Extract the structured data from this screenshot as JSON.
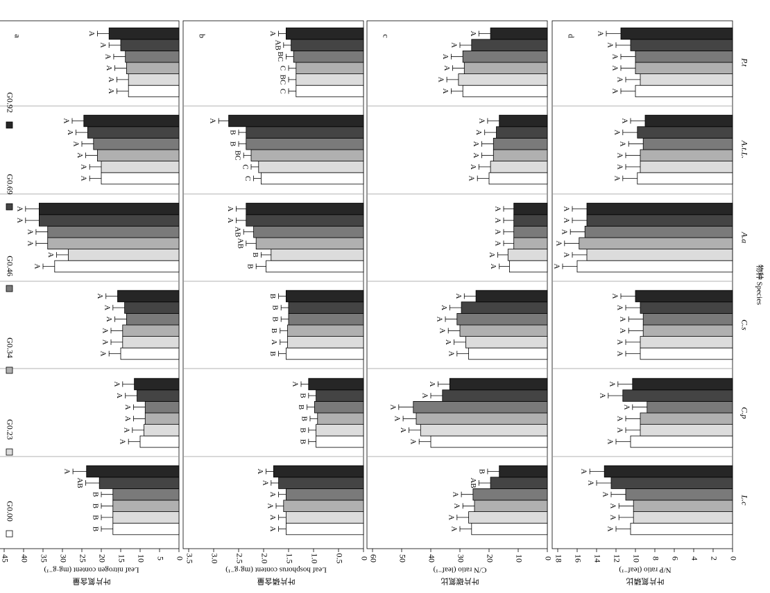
{
  "chart_data": {
    "type": "bar",
    "orientation": "horizontal",
    "categories": [
      "L.c",
      "C.p",
      "C.s",
      "A.a",
      "A.t.L.",
      "P.t"
    ],
    "xlabel": "物种 Species",
    "legend": {
      "placement": "top-left",
      "entries": [
        "G0.00",
        "G0.23",
        "G0.34",
        "G0.46",
        "G0.69",
        "G0.92"
      ],
      "colors": [
        "#ffffff",
        "#dcdcdc",
        "#b0b0b0",
        "#7a7a7a",
        "#444444",
        "#262626"
      ]
    },
    "panels": [
      {
        "label": "a",
        "ylabel_cn": "叶片氮含量",
        "ylabel": "Leaf nitrogen content (mg·g⁻¹)",
        "ylim": [
          0,
          45
        ],
        "ticks": [
          45,
          40,
          35,
          30,
          25,
          20,
          15,
          10,
          5,
          0
        ],
        "series": [
          {
            "name": "G0.00",
            "values": [
              17.0,
              10.0,
              15.0,
              32.0,
              20.0,
              13.0
            ],
            "errors": [
              3.0,
              3.0,
              3.0,
              3.0,
              3.0,
              3.0
            ],
            "sig": [
              "B",
              "A",
              "A",
              "A",
              "A",
              "A"
            ]
          },
          {
            "name": "G0.23",
            "values": [
              17.0,
              9.0,
              14.5,
              28.5,
              20.0,
              13.0
            ],
            "errors": [
              3.0,
              3.0,
              3.0,
              3.0,
              3.0,
              3.0
            ],
            "sig": [
              "B",
              "A",
              "A",
              "A",
              "A",
              "A"
            ]
          },
          {
            "name": "G0.34",
            "values": [
              17.0,
              8.7,
              14.5,
              33.8,
              21.0,
              13.5
            ],
            "errors": [
              3.0,
              3.0,
              3.0,
              3.0,
              3.0,
              3.0
            ],
            "sig": [
              "B",
              "A",
              "A",
              "A",
              "A",
              "A"
            ]
          },
          {
            "name": "G0.46",
            "values": [
              17.0,
              8.7,
              13.5,
              33.8,
              22.0,
              13.8
            ],
            "errors": [
              3.0,
              3.0,
              3.0,
              3.0,
              3.0,
              3.0
            ],
            "sig": [
              "B",
              "A",
              "A",
              "A",
              "A",
              "A"
            ]
          },
          {
            "name": "G0.69",
            "values": [
              20.5,
              10.8,
              14.0,
              36.0,
              23.5,
              15.0
            ],
            "errors": [
              3.5,
              3.0,
              3.0,
              3.5,
              3.0,
              3.0
            ],
            "sig": [
              "AB",
              "A",
              "A",
              "A",
              "A",
              "A"
            ]
          },
          {
            "name": "G0.92",
            "values": [
              23.8,
              11.5,
              15.8,
              36.0,
              24.5,
              18.0
            ],
            "errors": [
              3.5,
              3.0,
              3.0,
              3.5,
              3.0,
              3.0
            ],
            "sig": [
              "A",
              "A",
              "A",
              "A",
              "A",
              "A"
            ]
          }
        ]
      },
      {
        "label": "b",
        "ylabel_cn": "叶片磷含量",
        "ylabel": "Leaf hosphorus content (mg·g⁻¹)",
        "ylim": [
          0,
          3.5
        ],
        "ticks": [
          "3.5",
          "3.0",
          "2.5",
          "2.0",
          "1.5",
          "1.0",
          "0.5",
          "0"
        ],
        "series": [
          {
            "name": "G0.00",
            "values": [
              1.55,
              0.95,
              1.55,
              1.95,
              2.05,
              1.35
            ],
            "errors": [
              0.15,
              0.15,
              0.15,
              0.2,
              0.15,
              0.15
            ],
            "sig": [
              "A",
              "B",
              "B",
              "B",
              "C",
              "C"
            ]
          },
          {
            "name": "G0.23",
            "values": [
              1.55,
              0.95,
              1.52,
              1.85,
              2.1,
              1.35
            ],
            "errors": [
              0.15,
              0.15,
              0.15,
              0.2,
              0.15,
              0.15
            ],
            "sig": [
              "A",
              "B",
              "A",
              "B",
              "C",
              "BC"
            ]
          },
          {
            "name": "G0.34",
            "values": [
              1.6,
              0.92,
              1.52,
              2.15,
              2.25,
              1.35
            ],
            "errors": [
              0.15,
              0.15,
              0.15,
              0.2,
              0.15,
              0.15
            ],
            "sig": [
              "A",
              "B",
              "B",
              "AB",
              "BC",
              "C"
            ]
          },
          {
            "name": "G0.46",
            "values": [
              1.55,
              0.98,
              1.5,
              2.2,
              2.35,
              1.4
            ],
            "errors": [
              0.15,
              0.15,
              0.15,
              0.2,
              0.15,
              0.15
            ],
            "sig": [
              "A",
              "B",
              "B",
              "AB",
              "B",
              "BC"
            ]
          },
          {
            "name": "G0.69",
            "values": [
              1.7,
              0.95,
              1.5,
              2.35,
              2.35,
              1.45
            ],
            "errors": [
              0.15,
              0.15,
              0.15,
              0.2,
              0.15,
              0.15
            ],
            "sig": [
              "A",
              "B",
              "B",
              "A",
              "B",
              "AB"
            ]
          },
          {
            "name": "G0.92",
            "values": [
              1.8,
              1.1,
              1.55,
              2.35,
              2.7,
              1.55
            ],
            "errors": [
              0.15,
              0.15,
              0.15,
              0.2,
              0.2,
              0.15
            ],
            "sig": [
              "A",
              "A",
              "B",
              "A",
              "A",
              "A"
            ]
          }
        ]
      },
      {
        "label": "c",
        "ylabel_cn": "叶片碳氮比",
        "ylabel": "C/N ratio (leaf⁻¹)",
        "ylim": [
          0,
          60
        ],
        "ticks": [
          60,
          50,
          40,
          30,
          20,
          10,
          0
        ],
        "series": [
          {
            "name": "G0.00",
            "values": [
              26.0,
              40.0,
              27.0,
              13.0,
              20.0,
              29.0
            ],
            "errors": [
              4.0,
              4.0,
              4.0,
              3.5,
              4.0,
              4.0
            ],
            "sig": [
              "A",
              "A",
              "A",
              "A",
              "A",
              "A"
            ]
          },
          {
            "name": "G0.23",
            "values": [
              27.0,
              43.5,
              28.0,
              13.5,
              19.5,
              30.5
            ],
            "errors": [
              4.0,
              4.0,
              4.0,
              3.5,
              4.0,
              4.0
            ],
            "sig": [
              "A",
              "A",
              "A",
              "A",
              "A",
              "A"
            ]
          },
          {
            "name": "G0.34",
            "values": [
              25.0,
              45.0,
              30.0,
              11.5,
              18.5,
              28.5
            ],
            "errors": [
              4.0,
              4.5,
              4.0,
              3.5,
              4.0,
              4.0
            ],
            "sig": [
              "A",
              "A",
              "A",
              "A",
              "A",
              "A"
            ]
          },
          {
            "name": "G0.46",
            "values": [
              25.5,
              46.0,
              31.0,
              11.5,
              18.5,
              29.0
            ],
            "errors": [
              4.0,
              5.0,
              4.0,
              3.5,
              4.0,
              4.0
            ],
            "sig": [
              "A",
              "A",
              "A",
              "A",
              "A",
              "A"
            ]
          },
          {
            "name": "G0.69",
            "values": [
              19.5,
              36.0,
              29.5,
              11.5,
              17.5,
              26.0
            ],
            "errors": [
              4.0,
              4.0,
              4.0,
              3.5,
              4.0,
              4.0
            ],
            "sig": [
              "AB",
              "A",
              "A",
              "A",
              "A",
              "A"
            ]
          },
          {
            "name": "G0.92",
            "values": [
              16.5,
              33.5,
              24.5,
              11.5,
              16.5,
              19.5
            ],
            "errors": [
              4.0,
              4.0,
              4.0,
              3.5,
              4.0,
              4.0
            ],
            "sig": [
              "B",
              "A",
              "A",
              "A",
              "A",
              "A"
            ]
          }
        ]
      },
      {
        "label": "d",
        "ylabel_cn": "叶片氮磷比",
        "ylabel": "N/P ratio (leaf⁻¹)",
        "ylim": [
          0,
          18
        ],
        "ticks": [
          18,
          16,
          14,
          12,
          10,
          8,
          6,
          4,
          2,
          0
        ],
        "series": [
          {
            "name": "G0.00",
            "values": [
              10.5,
              10.5,
              9.5,
              16.0,
              9.8,
              10.0
            ],
            "errors": [
              1.5,
              1.5,
              1.5,
              1.5,
              1.5,
              1.5
            ],
            "sig": [
              "A",
              "A",
              "A",
              "A",
              "A",
              "A"
            ]
          },
          {
            "name": "G0.23",
            "values": [
              10.2,
              9.5,
              9.5,
              15.0,
              9.5,
              9.5
            ],
            "errors": [
              1.5,
              1.5,
              1.5,
              1.5,
              1.5,
              1.5
            ],
            "sig": [
              "A",
              "A",
              "A",
              "A",
              "A",
              "A"
            ]
          },
          {
            "name": "G0.34",
            "values": [
              10.2,
              9.5,
              9.2,
              15.8,
              9.5,
              10.0
            ],
            "errors": [
              1.5,
              1.5,
              1.5,
              1.5,
              1.5,
              1.5
            ],
            "sig": [
              "A",
              "A",
              "A",
              "A",
              "A",
              "A"
            ]
          },
          {
            "name": "G0.46",
            "values": [
              11.0,
              8.8,
              9.2,
              15.2,
              9.2,
              10.0
            ],
            "errors": [
              1.5,
              1.5,
              1.5,
              1.5,
              1.5,
              1.5
            ],
            "sig": [
              "A",
              "A",
              "A",
              "A",
              "A",
              "A"
            ]
          },
          {
            "name": "G0.69",
            "values": [
              12.5,
              11.3,
              9.5,
              15.0,
              9.8,
              10.5
            ],
            "errors": [
              1.5,
              1.5,
              1.5,
              1.5,
              1.5,
              1.5
            ],
            "sig": [
              "A",
              "A",
              "A",
              "A",
              "A",
              "A"
            ]
          },
          {
            "name": "G0.92",
            "values": [
              13.2,
              10.3,
              10.0,
              15.0,
              9.0,
              11.5
            ],
            "errors": [
              1.5,
              1.5,
              1.5,
              1.5,
              1.5,
              1.5
            ],
            "sig": [
              "A",
              "A",
              "A",
              "A",
              "A",
              "A"
            ]
          }
        ]
      }
    ]
  }
}
